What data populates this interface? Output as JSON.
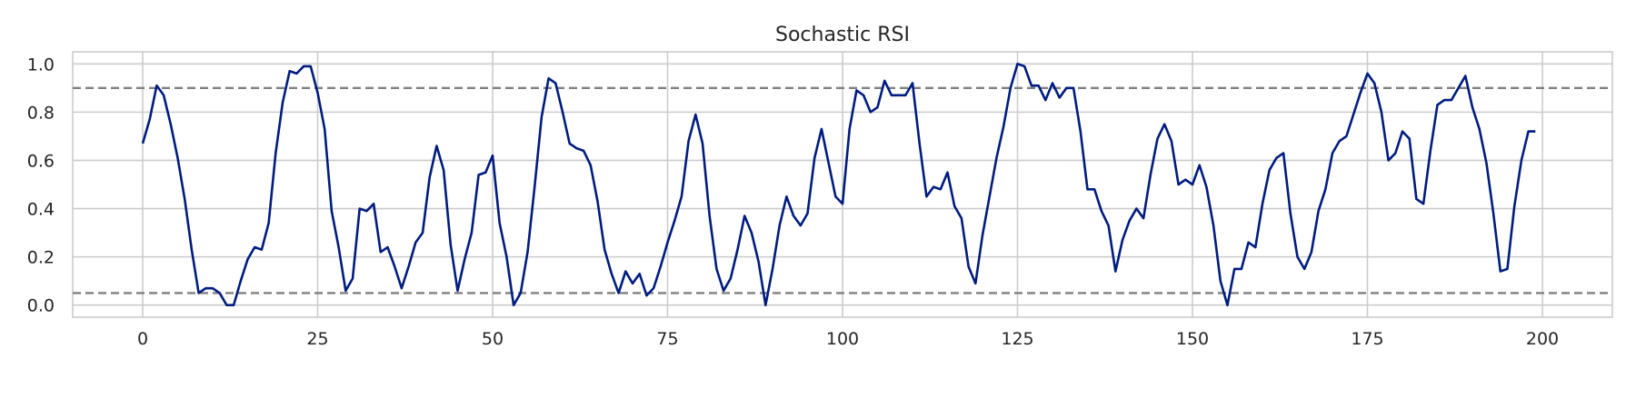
{
  "chart_data": {
    "type": "line",
    "title": "Sochastic RSI",
    "xlabel": "",
    "ylabel": "",
    "xlim": [
      -10,
      210
    ],
    "ylim": [
      -0.05,
      1.05
    ],
    "xticks": [
      0,
      25,
      50,
      75,
      100,
      125,
      150,
      175,
      200
    ],
    "yticks": [
      0.0,
      0.2,
      0.4,
      0.6,
      0.8,
      1.0
    ],
    "grid": true,
    "legend": "none",
    "line_color": "#001c7f",
    "reference_lines": [
      {
        "y": 0.9,
        "style": "dashed",
        "color": "#808080"
      },
      {
        "y": 0.05,
        "style": "dashed",
        "color": "#808080"
      }
    ],
    "series": [
      {
        "x_start": 0,
        "values": [
          0.67,
          0.77,
          0.91,
          0.87,
          0.75,
          0.61,
          0.44,
          0.23,
          0.05,
          0.07,
          0.07,
          0.05,
          0.0,
          0.0,
          0.1,
          0.19,
          0.24,
          0.23,
          0.34,
          0.63,
          0.84,
          0.97,
          0.96,
          0.99,
          0.99,
          0.88,
          0.73,
          0.39,
          0.24,
          0.06,
          0.11,
          0.4,
          0.39,
          0.42,
          0.22,
          0.24,
          0.16,
          0.07,
          0.16,
          0.26,
          0.3,
          0.53,
          0.66,
          0.56,
          0.25,
          0.06,
          0.19,
          0.3,
          0.54,
          0.55,
          0.62,
          0.34,
          0.2,
          0.0,
          0.05,
          0.22,
          0.49,
          0.78,
          0.94,
          0.92,
          0.8,
          0.67,
          0.65,
          0.64,
          0.58,
          0.43,
          0.23,
          0.13,
          0.05,
          0.14,
          0.09,
          0.13,
          0.04,
          0.07,
          0.16,
          0.26,
          0.35,
          0.45,
          0.68,
          0.79,
          0.67,
          0.37,
          0.15,
          0.06,
          0.11,
          0.23,
          0.37,
          0.3,
          0.18,
          0.0,
          0.15,
          0.33,
          0.45,
          0.37,
          0.33,
          0.38,
          0.61,
          0.73,
          0.59,
          0.45,
          0.42,
          0.73,
          0.89,
          0.87,
          0.8,
          0.82,
          0.93,
          0.87,
          0.87,
          0.87,
          0.92,
          0.67,
          0.45,
          0.49,
          0.48,
          0.55,
          0.41,
          0.36,
          0.16,
          0.09,
          0.29,
          0.45,
          0.61,
          0.74,
          0.9,
          1.0,
          0.99,
          0.91,
          0.91,
          0.85,
          0.92,
          0.86,
          0.9,
          0.9,
          0.72,
          0.48,
          0.48,
          0.39,
          0.33,
          0.14,
          0.27,
          0.35,
          0.4,
          0.36,
          0.54,
          0.69,
          0.75,
          0.68,
          0.5,
          0.52,
          0.5,
          0.58,
          0.49,
          0.33,
          0.1,
          0.0,
          0.15,
          0.15,
          0.26,
          0.24,
          0.42,
          0.56,
          0.61,
          0.63,
          0.38,
          0.2,
          0.15,
          0.22,
          0.39,
          0.48,
          0.63,
          0.68,
          0.7,
          0.79,
          0.88,
          0.96,
          0.92,
          0.8,
          0.6,
          0.63,
          0.72,
          0.69,
          0.44,
          0.42,
          0.64,
          0.83,
          0.85,
          0.85,
          0.9,
          0.95,
          0.82,
          0.73,
          0.59,
          0.38,
          0.14,
          0.15,
          0.41,
          0.6,
          0.72,
          0.72
        ]
      }
    ]
  }
}
